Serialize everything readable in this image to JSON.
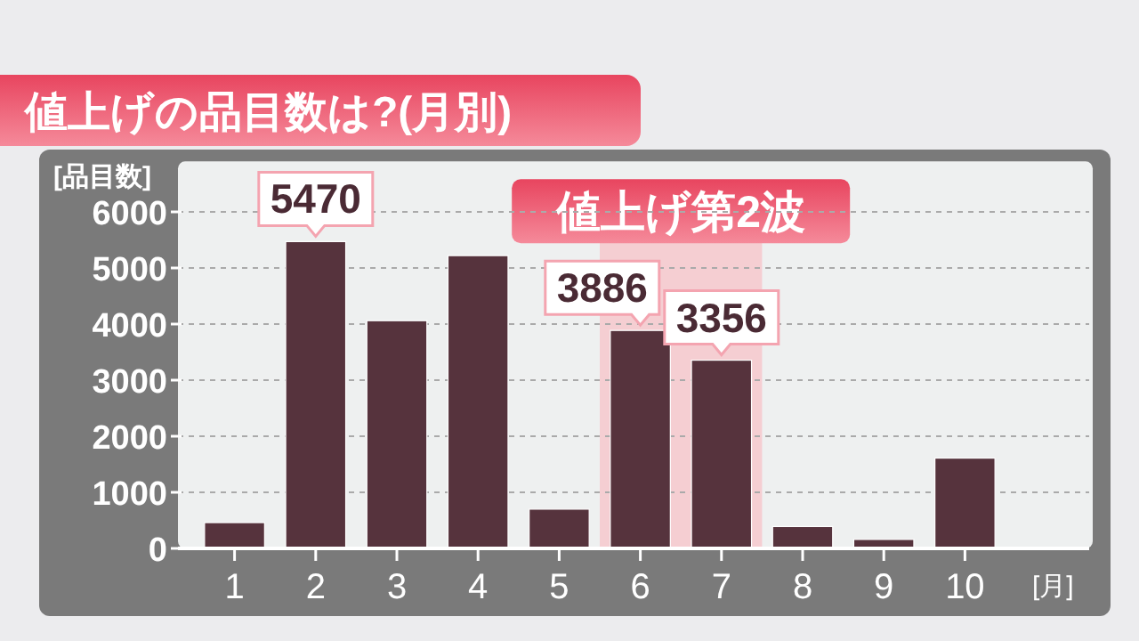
{
  "chart_data": {
    "type": "bar",
    "title": "値上げの品目数は?(月別)",
    "ylabel": "[品目数]",
    "xlabel": "[月]",
    "categories": [
      "1",
      "2",
      "3",
      "4",
      "5",
      "6",
      "7",
      "8",
      "9",
      "10"
    ],
    "values": [
      460,
      5470,
      4060,
      5220,
      700,
      3886,
      3356,
      390,
      160,
      1610
    ],
    "value_labels": [
      null,
      "5470",
      null,
      null,
      null,
      "3886",
      "3356",
      null,
      null,
      null
    ],
    "color": "#56333d",
    "ylim": [
      0,
      6900
    ],
    "yticks": [
      0,
      1000,
      2000,
      3000,
      4000,
      5000,
      6000
    ],
    "grid": "y",
    "bands": [
      {
        "axis": "x",
        "from": "6",
        "to": "7",
        "label": "値上げ第2波",
        "color": "#f7c3c8"
      }
    ]
  }
}
